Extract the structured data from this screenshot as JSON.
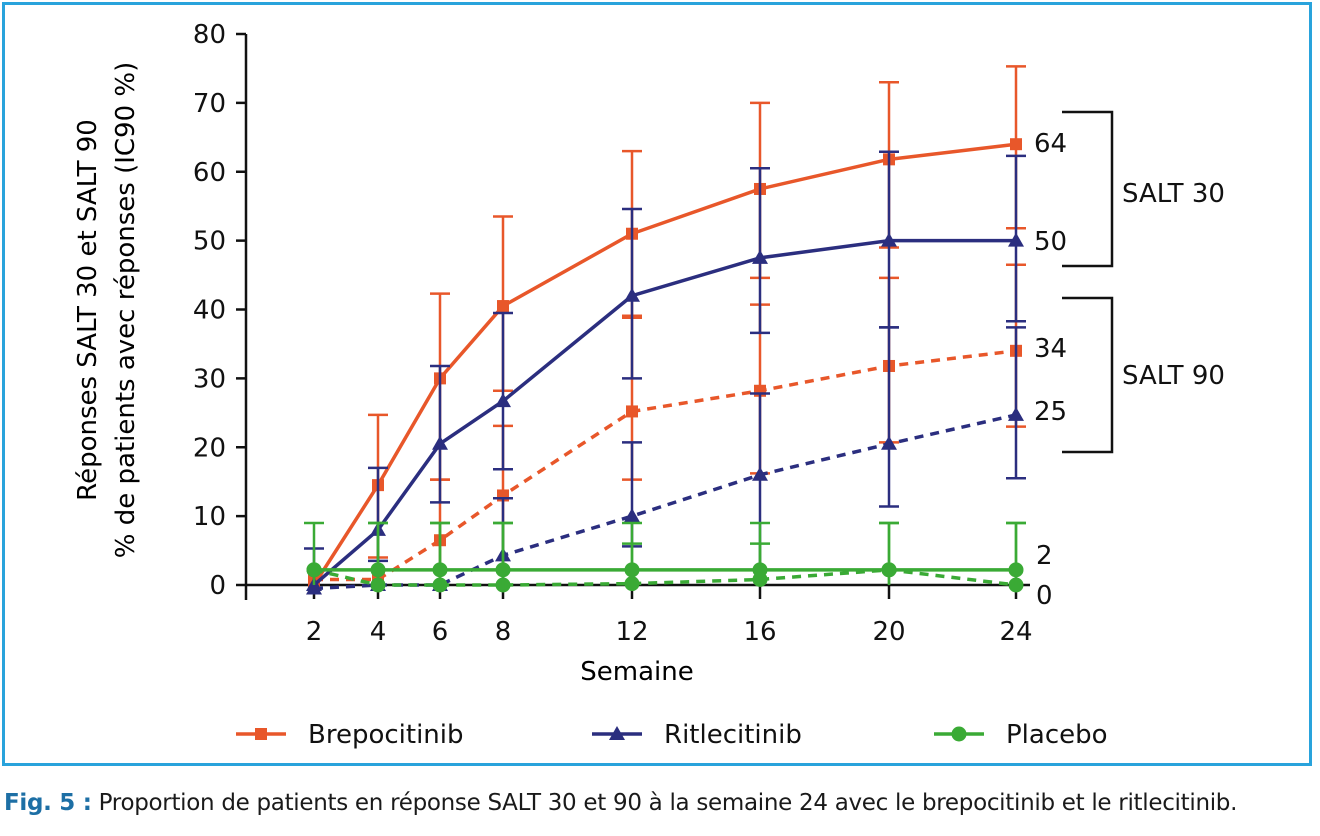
{
  "figure": {
    "caption_label": "Fig. 5 :",
    "caption_text": "Proportion de patients en réponse SALT 30 et 90 à la semaine 24 avec le brepocitinib et le ritlecitinib."
  },
  "chart_data": {
    "type": "line",
    "xlabel": "Semaine",
    "ylabel": [
      "Réponses SALT 30 et SALT 90",
      "% de patients avec réponses (IC90 %)"
    ],
    "x": [
      2,
      4,
      6,
      8,
      12,
      16,
      20,
      24
    ],
    "x_ticks": [
      "2",
      "4",
      "6",
      "8",
      "12",
      "16",
      "20",
      "24"
    ],
    "ylim": [
      0,
      80
    ],
    "y_ticks": [
      "0",
      "10",
      "20",
      "30",
      "40",
      "50",
      "60",
      "70",
      "80"
    ],
    "grid": false,
    "legend_placement": "bottom",
    "legend": [
      {
        "name": "Brepocitinib",
        "color": "#e8572a",
        "marker": "square"
      },
      {
        "name": "Ritlecitinib",
        "color": "#2b2e7f",
        "marker": "triangle"
      },
      {
        "name": "Placebo",
        "color": "#3aaa35",
        "marker": "circle"
      }
    ],
    "series": [
      {
        "drug": "Brepocitinib",
        "endpoint": "SALT 30",
        "style": "solid",
        "color": "#e8572a",
        "marker": "square",
        "values": [
          0,
          14.5,
          30,
          40.5,
          51,
          57.5,
          61.8,
          64
        ],
        "err_upper": [
          0,
          24.7,
          42.3,
          53.5,
          63,
          70,
          73,
          75.3
        ],
        "err_lower": [
          0,
          4,
          15.3,
          28.2,
          38.8,
          44.6,
          49,
          51.8
        ]
      },
      {
        "drug": "Ritlecitinib",
        "endpoint": "SALT 30",
        "style": "solid",
        "color": "#2b2e7f",
        "marker": "triangle",
        "values": [
          0,
          8,
          20.5,
          26.7,
          42,
          47.5,
          50,
          50
        ],
        "err_upper": [
          5.3,
          17,
          31.8,
          39.5,
          54.6,
          60.5,
          62.9,
          62.3
        ],
        "err_lower": [
          0,
          3.5,
          12,
          16.8,
          30,
          36.6,
          37.4,
          38.3
        ]
      },
      {
        "drug": "Brepocitinib",
        "endpoint": "SALT 90",
        "style": "dashed",
        "color": "#e8572a",
        "marker": "square",
        "values": [
          0.8,
          0.8,
          6.5,
          13,
          25.2,
          28.2,
          31.8,
          34
        ],
        "err_upper": [
          0.8,
          0.8,
          15.3,
          23.1,
          39.1,
          40.7,
          44.6,
          46.5
        ],
        "err_lower": [
          0.8,
          0.8,
          0,
          0,
          15.3,
          16.2,
          20.7,
          23
        ]
      },
      {
        "drug": "Ritlecitinib",
        "endpoint": "SALT 90",
        "style": "dashed",
        "color": "#2b2e7f",
        "marker": "triangle",
        "values": [
          -0.5,
          0,
          0,
          4.3,
          10,
          16,
          20.5,
          24.7
        ],
        "err_upper": [
          -0.5,
          0,
          0,
          12.6,
          20.7,
          27.8,
          37.4,
          37.4
        ],
        "err_lower": [
          -0.5,
          0,
          0,
          0,
          5.6,
          0,
          11.4,
          15.5
        ]
      },
      {
        "drug": "Placebo",
        "endpoint": "SALT 30",
        "style": "solid",
        "color": "#3aaa35",
        "marker": "circle",
        "values": [
          2.2,
          2.2,
          2.2,
          2.2,
          2.2,
          2.2,
          2.2,
          2.2
        ],
        "err_upper": [
          9,
          9,
          9,
          9,
          9,
          9,
          9,
          9
        ],
        "err_lower": [
          0,
          0,
          0,
          0,
          0,
          0,
          0,
          0
        ]
      },
      {
        "drug": "Placebo",
        "endpoint": "SALT 90",
        "style": "dashed",
        "color": "#3aaa35",
        "marker": "circle",
        "values": [
          2.2,
          0,
          0,
          0,
          0.2,
          0.8,
          2.2,
          0
        ],
        "err_upper": [
          2.2,
          9,
          9,
          9,
          6,
          6,
          9,
          9
        ],
        "err_lower": [
          2.2,
          0,
          0,
          0,
          0,
          0,
          0,
          0
        ]
      }
    ],
    "end_labels": [
      "64",
      "50",
      "34",
      "25",
      "2",
      "0"
    ],
    "end_label_values": [
      64,
      50,
      34,
      25,
      2,
      0
    ],
    "groups": [
      {
        "label": "SALT 30",
        "range": [
          46.5,
          68
        ]
      },
      {
        "label": "SALT 90",
        "range": [
          19.3,
          41
        ]
      }
    ]
  }
}
